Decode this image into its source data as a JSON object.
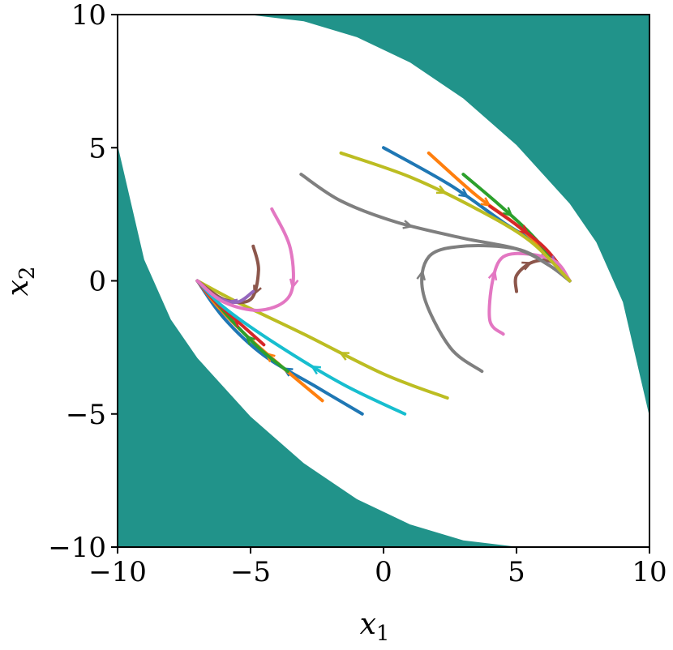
{
  "chart_data": {
    "type": "line",
    "title": "",
    "xlabel": "x_1",
    "ylabel": "x_2",
    "xlim": [
      -10,
      10
    ],
    "ylim": [
      -10,
      10
    ],
    "grid": false,
    "x_ticks": [
      "−10",
      "−5",
      "0",
      "5",
      "10"
    ],
    "y_ticks": [
      "−10",
      "−5",
      "0",
      "5",
      "10"
    ],
    "x_tick_values": [
      -10,
      -5,
      0,
      5,
      10
    ],
    "y_tick_values": [
      -10,
      -5,
      0,
      5,
      10
    ],
    "unsafe_region_color": "#21938a",
    "unsafe_region": {
      "upper_right": [
        [
          -5.1,
          10
        ],
        [
          -3,
          9.75
        ],
        [
          -1,
          9.15
        ],
        [
          1,
          8.2
        ],
        [
          3,
          6.85
        ],
        [
          5,
          5.1
        ],
        [
          7,
          2.9
        ],
        [
          8,
          1.45
        ],
        [
          9,
          -0.8
        ],
        [
          10,
          -5.1
        ],
        [
          10,
          10
        ]
      ],
      "lower_left": [
        [
          -10,
          5.1
        ],
        [
          -9,
          0.8
        ],
        [
          -8,
          -1.45
        ],
        [
          -7,
          -2.9
        ],
        [
          -5,
          -5.1
        ],
        [
          -3,
          -6.85
        ],
        [
          -1,
          -8.2
        ],
        [
          1,
          -9.15
        ],
        [
          3,
          -9.75
        ],
        [
          5.1,
          -10
        ],
        [
          -10,
          -10
        ]
      ]
    },
    "series": [
      {
        "color": "#1f77b4",
        "points": [
          [
            0,
            5
          ],
          [
            2.5,
            3.6
          ],
          [
            4.5,
            2.2
          ],
          [
            6,
            1.2
          ],
          [
            7,
            0
          ]
        ]
      },
      {
        "color": "#ff7f0e",
        "points": [
          [
            1.7,
            4.8
          ],
          [
            3.5,
            3.2
          ],
          [
            5,
            2.1
          ],
          [
            6.2,
            1.0
          ],
          [
            7,
            0
          ]
        ]
      },
      {
        "color": "#2ca02c",
        "points": [
          [
            3,
            4
          ],
          [
            4.3,
            2.9
          ],
          [
            5.4,
            1.9
          ],
          [
            6.3,
            0.9
          ],
          [
            7,
            0
          ]
        ]
      },
      {
        "color": "#d62728",
        "points": [
          [
            4,
            2.8
          ],
          [
            5,
            2.1
          ],
          [
            6,
            1.3
          ],
          [
            6.6,
            0.6
          ],
          [
            7,
            0
          ]
        ]
      },
      {
        "color": "#9467bd",
        "points": [
          [
            6,
            1
          ],
          [
            6.5,
            0.6
          ],
          [
            7,
            0
          ]
        ]
      },
      {
        "color": "#8c564b",
        "points": [
          [
            5,
            -0.4
          ],
          [
            5,
            0.2
          ],
          [
            5.6,
            0.7
          ],
          [
            6.4,
            0.7
          ],
          [
            7,
            0
          ]
        ]
      },
      {
        "color": "#e377c2",
        "points": [
          [
            4.5,
            -2
          ],
          [
            4,
            -1.5
          ],
          [
            4.1,
            0
          ],
          [
            4.5,
            0.9
          ],
          [
            5.5,
            1
          ],
          [
            6.5,
            0.7
          ],
          [
            7,
            0
          ]
        ]
      },
      {
        "color": "#7f7f7f",
        "points": [
          [
            -3.1,
            4
          ],
          [
            -1.6,
            3
          ],
          [
            0.5,
            2.2
          ],
          [
            3,
            1.6
          ],
          [
            5,
            1.2
          ],
          [
            6.2,
            0.6
          ],
          [
            7,
            0
          ]
        ]
      },
      {
        "color": "#7f7f7f",
        "points": [
          [
            3.7,
            -3.4
          ],
          [
            2.5,
            -2.5
          ],
          [
            1.5,
            -0.5
          ],
          [
            1.7,
            0.9
          ],
          [
            3,
            1.3
          ],
          [
            5,
            1.2
          ],
          [
            6.2,
            0.6
          ],
          [
            7,
            0
          ]
        ]
      },
      {
        "color": "#bcbd22",
        "points": [
          [
            -1.6,
            4.8
          ],
          [
            1,
            3.9
          ],
          [
            3.5,
            2.7
          ],
          [
            5.5,
            1.5
          ],
          [
            7,
            0
          ]
        ]
      },
      {
        "color": "#1f77b4",
        "points": [
          [
            -0.8,
            -5
          ],
          [
            -2.5,
            -4
          ],
          [
            -4.5,
            -2.8
          ],
          [
            -6,
            -1.4
          ],
          [
            -7,
            0
          ]
        ]
      },
      {
        "color": "#ff7f0e",
        "points": [
          [
            -2.3,
            -4.5
          ],
          [
            -3.5,
            -3.5
          ],
          [
            -5,
            -2.2
          ],
          [
            -6.2,
            -1.0
          ],
          [
            -7,
            0
          ]
        ]
      },
      {
        "color": "#2ca02c",
        "points": [
          [
            -3.6,
            -3.4
          ],
          [
            -4.6,
            -2.6
          ],
          [
            -5.6,
            -1.6
          ],
          [
            -7,
            0
          ]
        ]
      },
      {
        "color": "#d62728",
        "points": [
          [
            -4.5,
            -2.4
          ],
          [
            -5.4,
            -1.6
          ],
          [
            -6.4,
            -0.7
          ],
          [
            -7,
            0
          ]
        ]
      },
      {
        "color": "#17becf",
        "points": [
          [
            0.8,
            -5
          ],
          [
            -1.5,
            -3.9
          ],
          [
            -4,
            -2.4
          ],
          [
            -6,
            -1.0
          ],
          [
            -7,
            0
          ]
        ]
      },
      {
        "color": "#bcbd22",
        "points": [
          [
            2.4,
            -4.4
          ],
          [
            0,
            -3.5
          ],
          [
            -3,
            -2
          ],
          [
            -5.5,
            -0.8
          ],
          [
            -7,
            0
          ]
        ]
      },
      {
        "color": "#8c564b",
        "points": [
          [
            -4.9,
            1.3
          ],
          [
            -4.7,
            0.4
          ],
          [
            -5,
            -0.7
          ],
          [
            -6,
            -0.7
          ],
          [
            -7,
            0
          ]
        ]
      },
      {
        "color": "#9467bd",
        "points": [
          [
            -4.9,
            -0.4
          ],
          [
            -5.5,
            -0.8
          ],
          [
            -6.3,
            -0.6
          ],
          [
            -7,
            0
          ]
        ]
      },
      {
        "color": "#e377c2",
        "points": [
          [
            -4.2,
            2.7
          ],
          [
            -3.5,
            1.2
          ],
          [
            -3.5,
            -0.5
          ],
          [
            -4.6,
            -1.1
          ],
          [
            -6,
            -0.8
          ],
          [
            -7,
            0
          ]
        ]
      }
    ]
  }
}
